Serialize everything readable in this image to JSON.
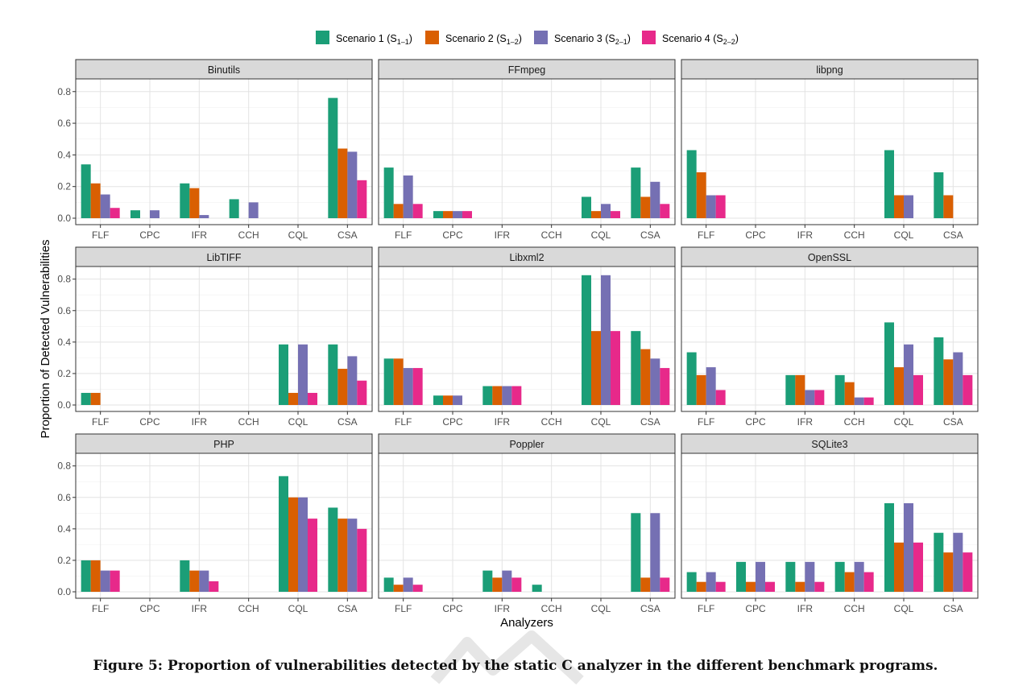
{
  "figure": {
    "caption": "Figure 5: Proportion of vulnerabilities detected by the static C analyzer in the different benchmark programs.",
    "ylabel": "Proportion of Detected Vulnerabilities",
    "xlabel": "Analyzers"
  },
  "chart_data": {
    "type": "bar",
    "layout": "facet-grid-3x3",
    "xlabel": "Analyzers",
    "ylabel": "Proportion of Detected Vulnerabilities",
    "ylim": [
      0,
      0.87
    ],
    "yticks": [
      "0.0",
      "0.2",
      "0.4",
      "0.6",
      "0.8"
    ],
    "ytick_values": [
      0,
      0.2,
      0.4,
      0.6,
      0.8
    ],
    "grid": true,
    "legend_position": "top",
    "categories": [
      "FLF",
      "CPC",
      "IFR",
      "CCH",
      "CQL",
      "CSA"
    ],
    "series_meta": [
      {
        "name": "Scenario 1 (S",
        "sub": "1–1",
        "close": ")",
        "color": "#1b9e77"
      },
      {
        "name": "Scenario 2 (S",
        "sub": "1–2",
        "close": ")",
        "color": "#d95f02"
      },
      {
        "name": "Scenario 3 (S",
        "sub": "2–1",
        "close": ")",
        "color": "#7570b3"
      },
      {
        "name": "Scenario 4 (S",
        "sub": "2–2",
        "close": ")",
        "color": "#e7298a"
      }
    ],
    "panels": [
      {
        "title": "Binutils",
        "values": [
          [
            0.34,
            0.22,
            0.15,
            0.065
          ],
          [
            0.05,
            0,
            0.05,
            0
          ],
          [
            0.22,
            0.19,
            0.02,
            0
          ],
          [
            0.12,
            0,
            0.1,
            0
          ],
          [
            0,
            0,
            0,
            0
          ],
          [
            0.76,
            0.44,
            0.42,
            0.24
          ]
        ]
      },
      {
        "title": "FFmpeg",
        "values": [
          [
            0.32,
            0.09,
            0.27,
            0.09
          ],
          [
            0.045,
            0.045,
            0.045,
            0.045
          ],
          [
            0,
            0,
            0,
            0
          ],
          [
            0,
            0,
            0,
            0
          ],
          [
            0.135,
            0.045,
            0.09,
            0.045
          ],
          [
            0.32,
            0.135,
            0.23,
            0.09
          ]
        ]
      },
      {
        "title": "libpng",
        "values": [
          [
            0.43,
            0.29,
            0.145,
            0.145
          ],
          [
            0,
            0,
            0,
            0
          ],
          [
            0,
            0,
            0,
            0
          ],
          [
            0,
            0,
            0,
            0
          ],
          [
            0.43,
            0.145,
            0.145,
            0
          ],
          [
            0.29,
            0.145,
            0,
            0
          ]
        ]
      },
      {
        "title": "LibTIFF",
        "values": [
          [
            0.077,
            0.077,
            0,
            0
          ],
          [
            0,
            0,
            0,
            0
          ],
          [
            0,
            0,
            0,
            0
          ],
          [
            0,
            0,
            0,
            0
          ],
          [
            0.385,
            0.077,
            0.385,
            0.077
          ],
          [
            0.385,
            0.23,
            0.31,
            0.155
          ]
        ]
      },
      {
        "title": "Libxml2",
        "values": [
          [
            0.295,
            0.295,
            0.235,
            0.235
          ],
          [
            0.06,
            0.06,
            0.06,
            0
          ],
          [
            0.12,
            0.12,
            0.12,
            0.12
          ],
          [
            0,
            0,
            0,
            0
          ],
          [
            0.825,
            0.47,
            0.825,
            0.47
          ],
          [
            0.47,
            0.355,
            0.295,
            0.235
          ]
        ]
      },
      {
        "title": "OpenSSL",
        "values": [
          [
            0.335,
            0.19,
            0.24,
            0.095
          ],
          [
            0,
            0,
            0,
            0
          ],
          [
            0.19,
            0.19,
            0.095,
            0.095
          ],
          [
            0.19,
            0.145,
            0.048,
            0.048
          ],
          [
            0.525,
            0.24,
            0.385,
            0.19
          ],
          [
            0.43,
            0.29,
            0.335,
            0.19
          ]
        ]
      },
      {
        "title": "PHP",
        "values": [
          [
            0.2,
            0.2,
            0.135,
            0.135
          ],
          [
            0,
            0,
            0,
            0
          ],
          [
            0.2,
            0.135,
            0.135,
            0.067
          ],
          [
            0,
            0,
            0,
            0
          ],
          [
            0.735,
            0.6,
            0.6,
            0.465
          ],
          [
            0.535,
            0.465,
            0.465,
            0.4
          ]
        ]
      },
      {
        "title": "Poppler",
        "values": [
          [
            0.09,
            0.045,
            0.09,
            0.045
          ],
          [
            0,
            0,
            0,
            0
          ],
          [
            0.135,
            0.09,
            0.135,
            0.09
          ],
          [
            0.045,
            0,
            0,
            0
          ],
          [
            0,
            0,
            0,
            0
          ],
          [
            0.5,
            0.09,
            0.5,
            0.09
          ]
        ]
      },
      {
        "title": "SQLite3",
        "values": [
          [
            0.125,
            0.063,
            0.125,
            0.063
          ],
          [
            0.19,
            0.063,
            0.19,
            0.063
          ],
          [
            0.19,
            0.063,
            0.19,
            0.063
          ],
          [
            0.19,
            0.125,
            0.19,
            0.125
          ],
          [
            0.563,
            0.313,
            0.563,
            0.313
          ],
          [
            0.375,
            0.25,
            0.375,
            0.25
          ]
        ]
      }
    ]
  }
}
